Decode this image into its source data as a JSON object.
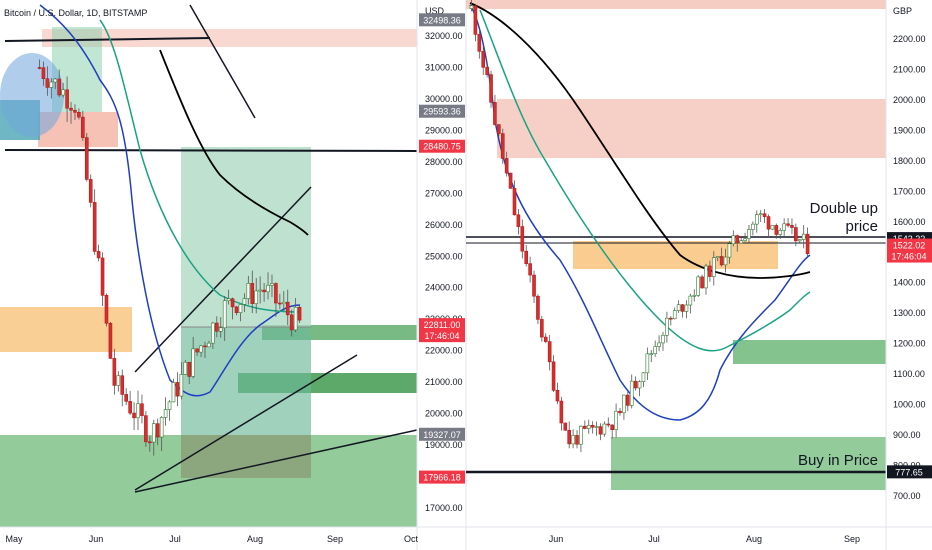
{
  "left_chart": {
    "header": "Bitcoin / U.S. Dollar, 1D, BITSTAMP",
    "currency_label": "USD",
    "x_ticks": [
      "May",
      "Jun",
      "Jul",
      "Aug",
      "Sep",
      "Oct"
    ],
    "y_ticks": [
      17000,
      18000,
      19000,
      20000,
      21000,
      22000,
      23000,
      24000,
      25000,
      26000,
      27000,
      28000,
      29000,
      30000,
      31000,
      32000
    ],
    "price_tags": [
      {
        "value": "32498.36",
        "bg": "#787b86"
      },
      {
        "value": "29593.36",
        "bg": "#787b86"
      },
      {
        "value": "28480.75",
        "bg": "#f23645"
      },
      {
        "value": "22811.00",
        "bg": "#f23645",
        "sub": "17:46:04"
      },
      {
        "value": "19327.07",
        "bg": "#787b86"
      },
      {
        "value": "17966.18",
        "bg": "#f23645"
      }
    ]
  },
  "right_chart": {
    "currency_label": "GBP",
    "x_ticks": [
      "Jun",
      "Jul",
      "Aug",
      "Sep"
    ],
    "y_ticks": [
      700,
      800,
      900,
      1000,
      1100,
      1200,
      1300,
      1400,
      1500,
      1600,
      1700,
      1800,
      1900,
      2000,
      2100,
      2200
    ],
    "price_tags": [
      {
        "value": "1543.22",
        "bg": "#131722"
      },
      {
        "value": "1522.02",
        "bg": "#f23645",
        "sub": "17:46:04"
      },
      {
        "value": "777.65",
        "bg": "#131722"
      }
    ],
    "annotations": [
      "Double up",
      "price",
      "Buy in Price"
    ]
  },
  "chart_data": [
    {
      "type": "candlestick",
      "title": "Bitcoin / U.S. Dollar, 1D, BITSTAMP",
      "ylabel": "USD",
      "x_range": [
        "May",
        "Oct"
      ],
      "ylim": [
        16500,
        32600
      ],
      "series": [
        {
          "name": "",
          "close_trend": [
            [
              "May",
              31000
            ],
            [
              "Jun",
              29800
            ],
            [
              "Jun",
              21000
            ],
            [
              "Jul",
              19300
            ],
            [
              "Jul",
              21500
            ],
            [
              "Aug",
              23400
            ],
            [
              "Aug",
              24000
            ],
            [
              "Aug",
              22811
            ]
          ]
        }
      ],
      "marked_levels": [
        32498.36,
        29593.36,
        28480.75,
        22811.0,
        19327.07,
        17966.18
      ]
    },
    {
      "type": "candlestick",
      "ylabel": "GBP",
      "x_range": [
        "May",
        "Sep"
      ],
      "ylim": [
        620,
        2320
      ],
      "series": [
        {
          "name": "",
          "close_trend": [
            [
              "May",
              2300
            ],
            [
              "Jun",
              1550
            ],
            [
              "Jun",
              880
            ],
            [
              "Jul",
              950
            ],
            [
              "Jul",
              1250
            ],
            [
              "Aug",
              1450
            ],
            [
              "Aug",
              1620
            ],
            [
              "Aug",
              1522.02
            ]
          ]
        }
      ],
      "marked_levels": [
        1543.22,
        1522.02,
        777.65
      ]
    }
  ]
}
